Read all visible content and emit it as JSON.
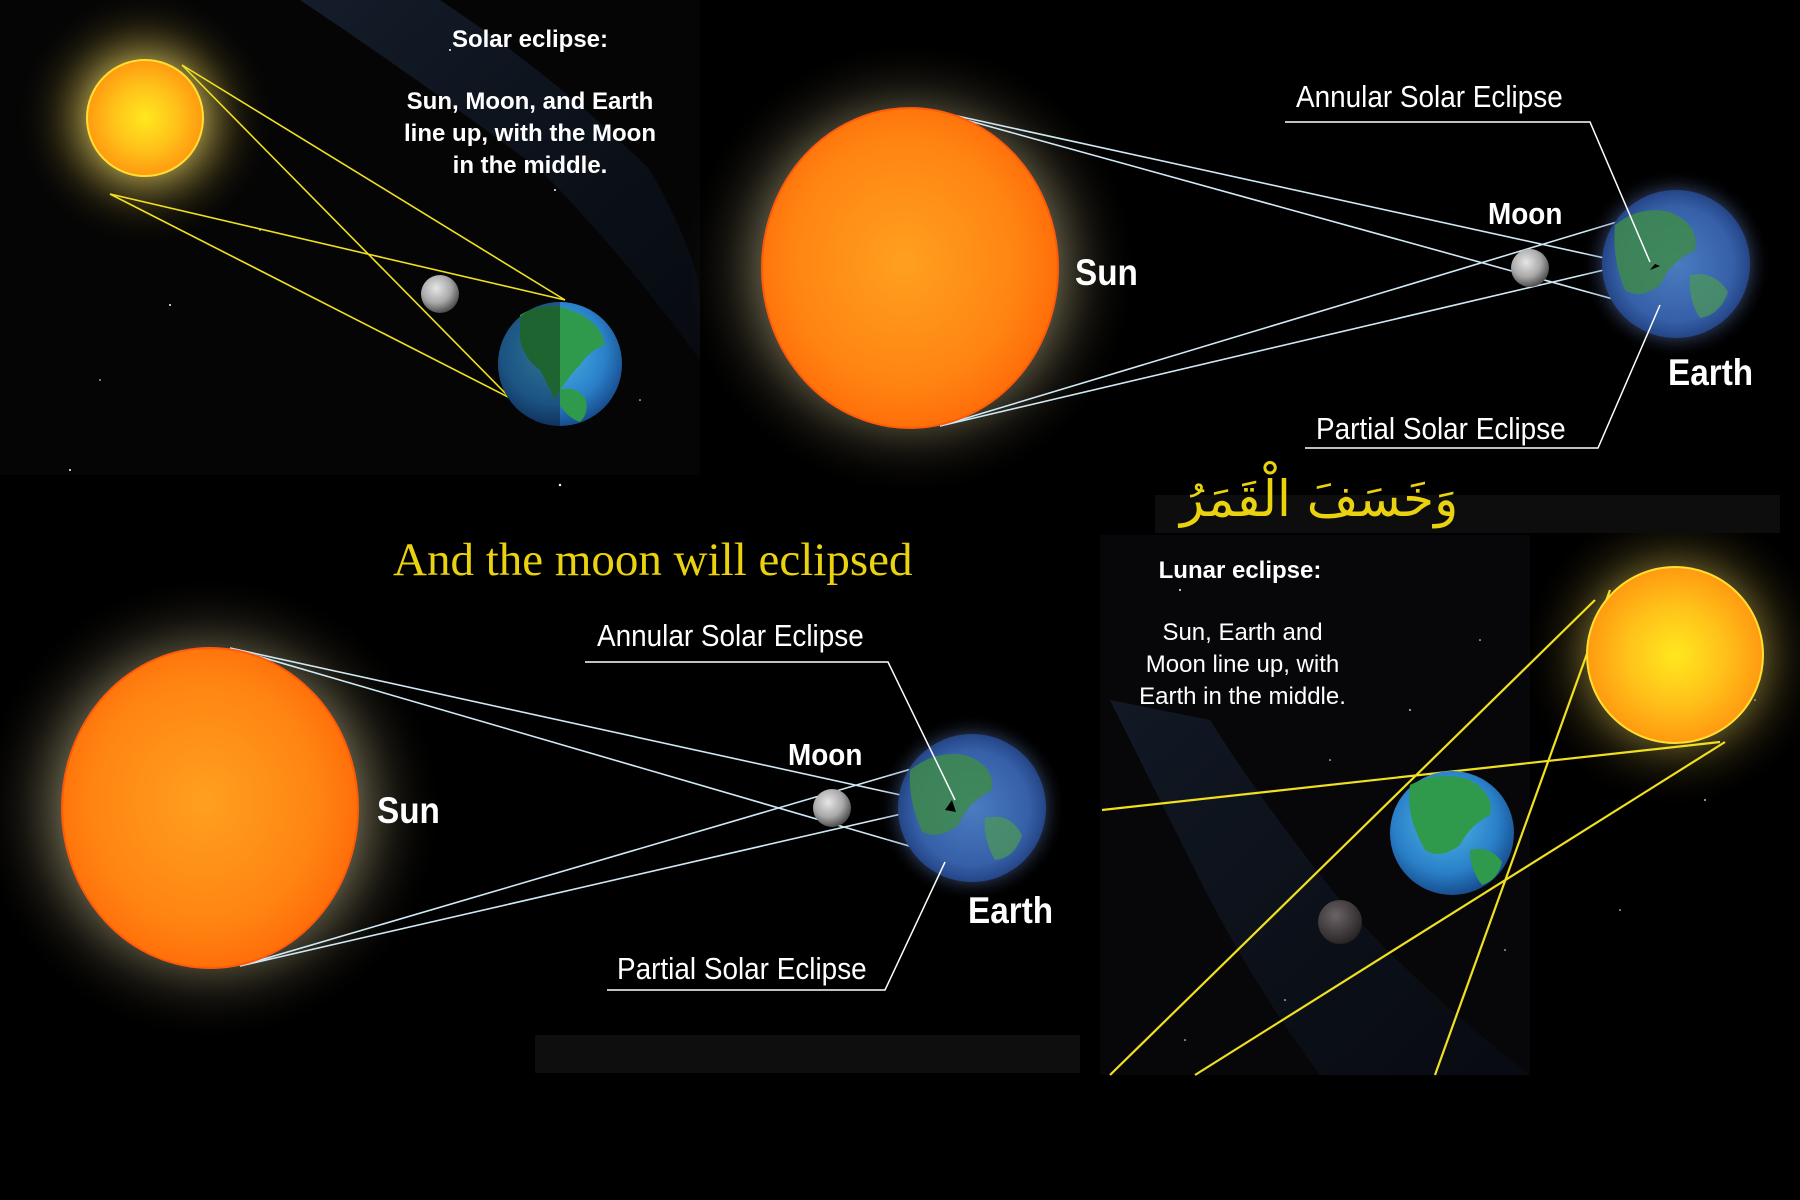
{
  "colors": {
    "background": "#000000",
    "sun_orange": "#ff7d10",
    "sun_yellow": "#ffd21e",
    "ray_yellow": "#f0e020",
    "ray_blue": "#cfe8f5",
    "leader_white": "#ffffff",
    "caption_gold": "#ebd20f"
  },
  "solar_panel": {
    "title": "Solar eclipse:",
    "description": [
      "Sun, Moon, and Earth",
      "line up, with the Moon",
      "in the middle."
    ]
  },
  "diagram_top": {
    "sun_label": "Sun",
    "moon_label": "Moon",
    "earth_label": "Earth",
    "annular_label": "Annular Solar Eclipse",
    "partial_label": "Partial Solar Eclipse"
  },
  "diagram_bottom": {
    "sun_label": "Sun",
    "moon_label": "Moon",
    "earth_label": "Earth",
    "annular_label": "Annular Solar Eclipse",
    "partial_label": "Partial Solar Eclipse"
  },
  "caption": {
    "arabic": "وَخَسَفَ الْقَمَرُ",
    "english": "And the moon will eclipsed"
  },
  "lunar_panel": {
    "title": "Lunar eclipse:",
    "description": [
      "Sun, Earth and",
      "Moon line up, with",
      "Earth in the middle."
    ]
  }
}
